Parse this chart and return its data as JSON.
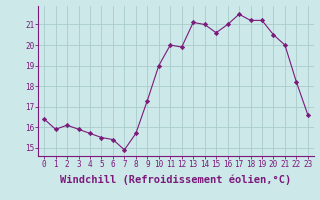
{
  "x": [
    0,
    1,
    2,
    3,
    4,
    5,
    6,
    7,
    8,
    9,
    10,
    11,
    12,
    13,
    14,
    15,
    16,
    17,
    18,
    19,
    20,
    21,
    22,
    23
  ],
  "y": [
    16.4,
    15.9,
    16.1,
    15.9,
    15.7,
    15.5,
    15.4,
    14.9,
    15.7,
    17.3,
    19.0,
    20.0,
    19.9,
    21.1,
    21.0,
    20.6,
    21.0,
    21.5,
    21.2,
    21.2,
    20.5,
    20.0,
    18.2,
    16.6
  ],
  "xlim": [
    -0.5,
    23.5
  ],
  "ylim": [
    14.6,
    21.9
  ],
  "yticks": [
    15,
    16,
    17,
    18,
    19,
    20,
    21
  ],
  "xticks": [
    0,
    1,
    2,
    3,
    4,
    5,
    6,
    7,
    8,
    9,
    10,
    11,
    12,
    13,
    14,
    15,
    16,
    17,
    18,
    19,
    20,
    21,
    22,
    23
  ],
  "xlabel": "Windchill (Refroidissement éolien,°C)",
  "line_color": "#7b1a7b",
  "marker": "D",
  "marker_size": 2.2,
  "bg_color": "#cce8e8",
  "grid_color": "#aacccc",
  "tick_label_fontsize": 5.5,
  "xlabel_fontsize": 7.5
}
